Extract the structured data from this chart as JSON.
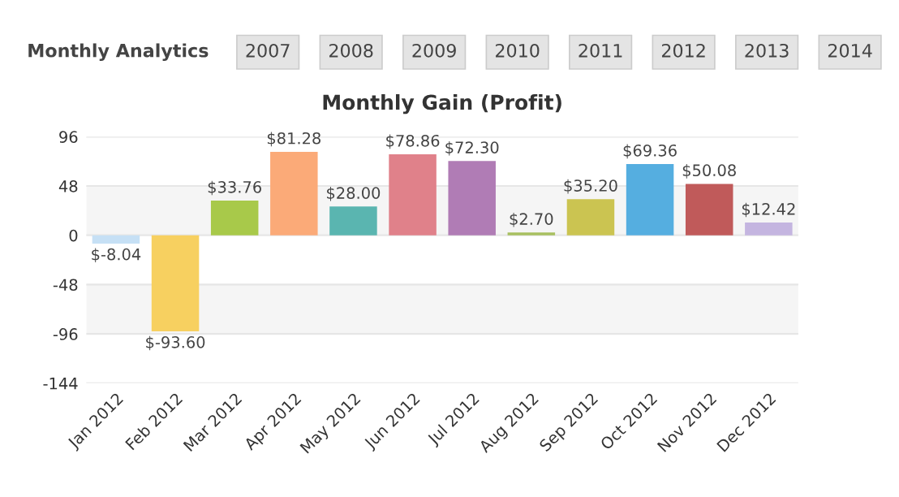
{
  "chart_data": {
    "type": "bar",
    "title": "Monthly Gain (Profit)",
    "categories": [
      "Jan 2012",
      "Feb 2012",
      "Mar 2012",
      "Apr 2012",
      "May 2012",
      "Jun 2012",
      "Jul 2012",
      "Aug 2012",
      "Sep 2012",
      "Oct 2012",
      "Nov 2012",
      "Dec 2012"
    ],
    "values": [
      -8.04,
      -93.6,
      33.76,
      81.28,
      28.0,
      78.86,
      72.3,
      2.7,
      35.2,
      69.36,
      50.08,
      12.42
    ],
    "colors": [
      "#c6e0f5",
      "#f7d060",
      "#a8c94a",
      "#fbaa78",
      "#5ab5b0",
      "#e0818a",
      "#b07cb5",
      "#a8c060",
      "#cbc451",
      "#55aee0",
      "#c05a5a",
      "#c4b5e0"
    ],
    "value_labels": [
      "$-8.04",
      "$-93.60",
      "$33.76",
      "$81.28",
      "$28.00",
      "$78.86",
      "$72.30",
      "$2.70",
      "$35.20",
      "$69.36",
      "$50.08",
      "$12.42"
    ],
    "ylim": [
      -144,
      96
    ],
    "yticks": [
      -144,
      -96,
      -48,
      0,
      48,
      96
    ],
    "grid": "y",
    "bands": [
      {
        "axis": "y",
        "from": 0,
        "to": 48,
        "color": "#f5f5f5"
      },
      {
        "axis": "y",
        "from": -96,
        "to": -48,
        "color": "#f5f5f5"
      }
    ],
    "annotations": [
      "Monthly Analytics",
      "2007",
      "2008",
      "2009",
      "2010",
      "2011",
      "2012",
      "2013",
      "2014"
    ]
  }
}
